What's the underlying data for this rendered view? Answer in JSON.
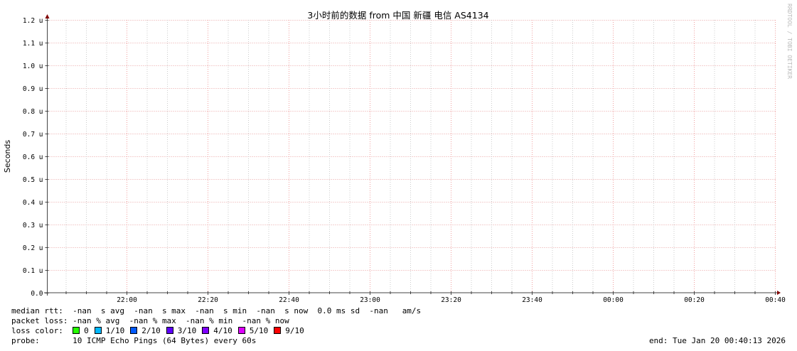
{
  "chart_data": {
    "type": "line",
    "title": "3小时前的数据 from 中国 新疆 电信 AS4134",
    "ylabel": "Seconds",
    "xlabel": "",
    "ylim": [
      0,
      1.2
    ],
    "y_unit": "u",
    "y_ticks": [
      "0.0",
      "0.1 u",
      "0.2 u",
      "0.3 u",
      "0.4 u",
      "0.5 u",
      "0.6 u",
      "0.7 u",
      "0.8 u",
      "0.9 u",
      "1.0 u",
      "1.1 u",
      "1.2 u"
    ],
    "x_ticks": [
      "22:00",
      "22:20",
      "22:40",
      "23:00",
      "23:20",
      "23:40",
      "00:00",
      "00:20",
      "00:40"
    ],
    "grid": true,
    "series": [],
    "watermark": "RRDTOOL / TOBI OETIKER"
  },
  "legend": {
    "median_rtt": {
      "label": "median rtt:",
      "text": "-nan  s avg  -nan  s max  -nan  s min  -nan  s now  0.0 ms sd  -nan   am/s"
    },
    "packet_loss": {
      "label": "packet loss:",
      "text": "-nan % avg  -nan % max  -nan % min  -nan % now"
    },
    "loss_color": {
      "label": "loss color:",
      "items": [
        {
          "label": "0",
          "color": "#26ff00"
        },
        {
          "label": "1/10",
          "color": "#00b8ff"
        },
        {
          "label": "2/10",
          "color": "#0059ff"
        },
        {
          "label": "3/10",
          "color": "#5e00ff"
        },
        {
          "label": "4/10",
          "color": "#7e00ff"
        },
        {
          "label": "5/10",
          "color": "#dd00ff"
        },
        {
          "label": "9/10",
          "color": "#ff0000"
        }
      ]
    },
    "probe": {
      "label": "probe:",
      "text": "10 ICMP Echo Pings (64 Bytes) every 60s"
    },
    "end": "end: Tue Jan 20 00:40:13 2026"
  }
}
